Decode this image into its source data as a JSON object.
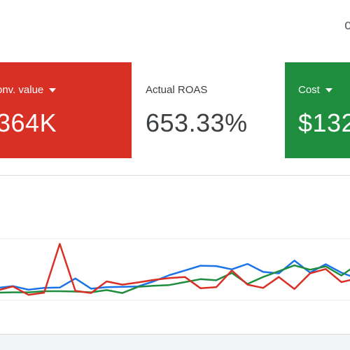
{
  "header": {
    "corner_glyph": "c"
  },
  "scorecards": [
    {
      "label": "onv. value",
      "value": "364K",
      "color": "#d93025",
      "has_dropdown": true
    },
    {
      "label": "Actual ROAS",
      "value": "653.33%",
      "color": "#ffffff",
      "has_dropdown": false
    },
    {
      "label": "Cost",
      "value": "$132",
      "color": "#1e8e3e",
      "has_dropdown": true
    }
  ],
  "chart_data": {
    "type": "line",
    "x": [
      0,
      1,
      2,
      3,
      4,
      5,
      6,
      7,
      8,
      9,
      10,
      11,
      12,
      13,
      14,
      15,
      16,
      17,
      18,
      19,
      20,
      21,
      22,
      23
    ],
    "grid": true,
    "series": [
      {
        "color": "#1a73e8",
        "values": [
          0.34,
          0.39,
          0.29,
          0.34,
          0.35,
          0.6,
          0.32,
          0.36,
          0.37,
          0.38,
          0.52,
          0.69,
          0.82,
          0.95,
          0.94,
          0.85,
          1.0,
          0.78,
          0.74,
          1.09,
          0.76,
          0.99,
          0.76,
          0.6
        ]
      },
      {
        "color": "#1e8e3e",
        "values": [
          0.21,
          0.22,
          0.22,
          0.25,
          0.25,
          0.24,
          0.22,
          0.28,
          0.2,
          0.37,
          0.4,
          0.42,
          0.5,
          0.58,
          0.55,
          0.75,
          0.45,
          0.64,
          0.8,
          0.96,
          0.84,
          0.93,
          0.68,
          0.98
        ]
      },
      {
        "color": "#d93025",
        "values": [
          0.27,
          0.38,
          0.15,
          0.21,
          1.55,
          0.26,
          0.2,
          0.52,
          0.43,
          0.49,
          0.56,
          0.61,
          0.64,
          0.33,
          0.36,
          0.82,
          0.43,
          0.34,
          0.64,
          0.31,
          0.74,
          0.86,
          0.5,
          0.6
        ]
      }
    ]
  }
}
